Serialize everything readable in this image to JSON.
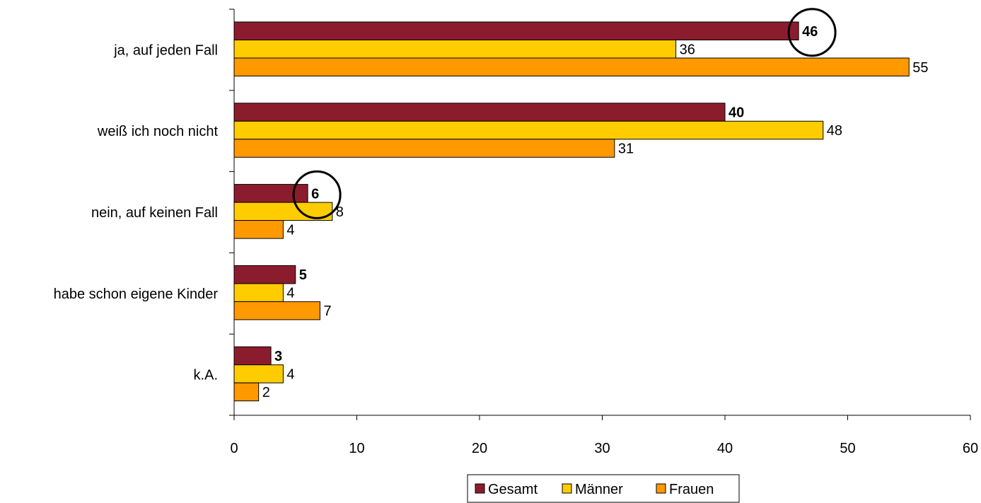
{
  "chart_data": {
    "type": "bar",
    "orientation": "horizontal",
    "categories": [
      "ja, auf jeden Fall",
      "weiß ich noch nicht",
      "nein, auf keinen Fall",
      "habe schon eigene Kinder",
      "k.A."
    ],
    "series": [
      {
        "name": "Gesamt",
        "color": "#8B1C2E",
        "values": [
          46,
          40,
          6,
          5,
          3
        ]
      },
      {
        "name": "Männer",
        "color": "#FFCC00",
        "values": [
          36,
          48,
          8,
          4,
          4
        ]
      },
      {
        "name": "Frauen",
        "color": "#FF9900",
        "values": [
          55,
          31,
          4,
          7,
          2
        ]
      }
    ],
    "title": "",
    "xlabel": "",
    "ylabel": "",
    "xlim": [
      0,
      60
    ],
    "x_ticks": [
      "0",
      "10",
      "20",
      "30",
      "40",
      "50",
      "60"
    ],
    "grid": false,
    "legend": "bottom",
    "bold_series": "Gesamt",
    "highlighted": [
      {
        "category": "ja, auf jeden Fall",
        "series": "Gesamt"
      },
      {
        "category": "nein, auf keinen Fall",
        "series": "Gesamt"
      }
    ]
  }
}
